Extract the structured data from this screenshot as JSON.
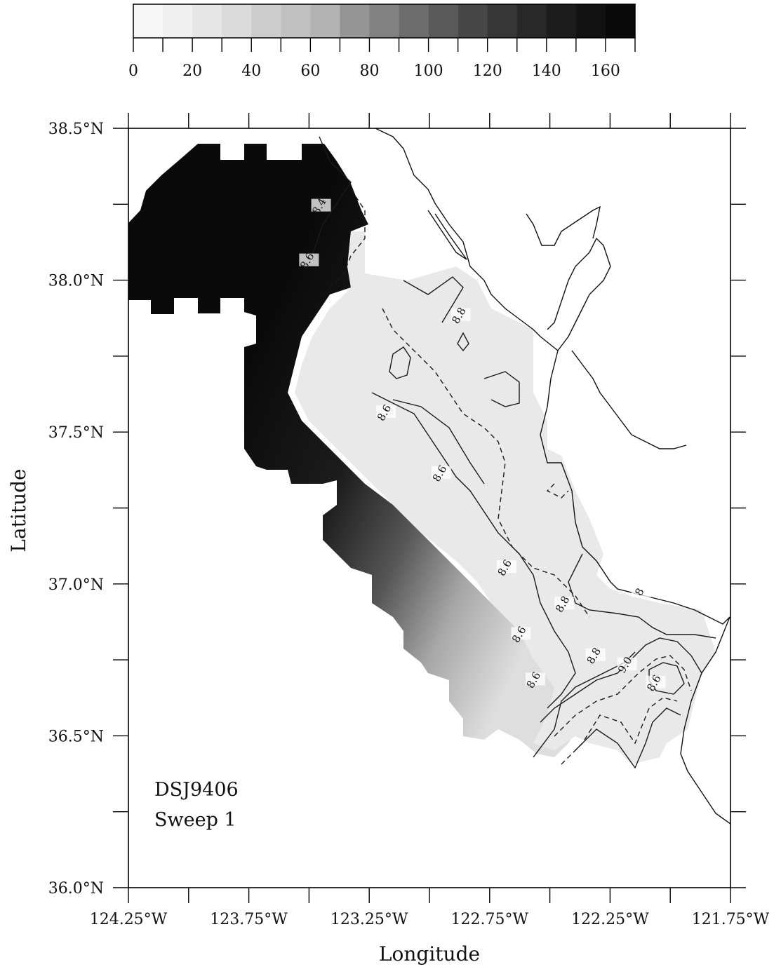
{
  "colorbar": {
    "tick_labels": [
      "0",
      "20",
      "40",
      "60",
      "80",
      "100",
      "120",
      "140",
      "160"
    ],
    "range": [
      0,
      170
    ],
    "bands": [
      {
        "from": 0,
        "to": 10,
        "color": "#f7f7f7"
      },
      {
        "from": 10,
        "to": 20,
        "color": "#f0f0f0"
      },
      {
        "from": 20,
        "to": 30,
        "color": "#e6e6e6"
      },
      {
        "from": 30,
        "to": 40,
        "color": "#dadada"
      },
      {
        "from": 40,
        "to": 50,
        "color": "#cdcdcd"
      },
      {
        "from": 50,
        "to": 60,
        "color": "#c0c0c0"
      },
      {
        "from": 60,
        "to": 70,
        "color": "#b3b3b3"
      },
      {
        "from": 70,
        "to": 80,
        "color": "#959595"
      },
      {
        "from": 80,
        "to": 90,
        "color": "#818181"
      },
      {
        "from": 90,
        "to": 100,
        "color": "#6d6d6d"
      },
      {
        "from": 100,
        "to": 110,
        "color": "#5a5a5a"
      },
      {
        "from": 110,
        "to": 120,
        "color": "#474747"
      },
      {
        "from": 120,
        "to": 130,
        "color": "#363636"
      },
      {
        "from": 130,
        "to": 140,
        "color": "#282828"
      },
      {
        "from": 140,
        "to": 150,
        "color": "#1c1c1c"
      },
      {
        "from": 150,
        "to": 160,
        "color": "#121212"
      },
      {
        "from": 160,
        "to": 170,
        "color": "#0a0a0a"
      }
    ]
  },
  "axes": {
    "x_title": "Longitude",
    "y_title": "Latitude",
    "x_tick_labels": [
      {
        "value": -124.25,
        "label": "124.25°W"
      },
      {
        "value": -123.75,
        "label": "123.75°W"
      },
      {
        "value": -123.25,
        "label": "123.25°W"
      },
      {
        "value": -122.75,
        "label": "122.75°W"
      },
      {
        "value": -122.25,
        "label": "122.25°W"
      },
      {
        "value": -121.75,
        "label": "121.75°W"
      }
    ],
    "y_tick_labels": [
      {
        "value": 38.5,
        "label": "38.5°N"
      },
      {
        "value": 38.0,
        "label": "38.0°N"
      },
      {
        "value": 37.5,
        "label": "37.5°N"
      },
      {
        "value": 37.0,
        "label": "37.0°N"
      },
      {
        "value": 36.5,
        "label": "36.5°N"
      },
      {
        "value": 36.0,
        "label": "36.0°N"
      }
    ],
    "xlim": [
      -124.25,
      -121.75
    ],
    "ylim": [
      36.0,
      38.5
    ],
    "minor_x_ticks": [
      -124.0,
      -123.5,
      -123.0,
      -122.5,
      -122.0
    ],
    "minor_y_ticks": [
      38.25,
      37.75,
      37.25,
      36.75,
      36.25
    ]
  },
  "annotation": {
    "line1": "DSJ9406",
    "line2": "Sweep 1"
  },
  "contour_labels": [
    {
      "text": "8.4",
      "lon": -123.45,
      "lat": 38.24
    },
    {
      "text": "8.6",
      "lon": -123.5,
      "lat": 38.06
    },
    {
      "text": "8.8",
      "lon": -122.87,
      "lat": 37.88
    },
    {
      "text": "8.6",
      "lon": -123.18,
      "lat": 37.56
    },
    {
      "text": "8.6",
      "lon": -122.95,
      "lat": 37.36
    },
    {
      "text": "8.6",
      "lon": -122.68,
      "lat": 37.05
    },
    {
      "text": "8.8",
      "lon": -122.44,
      "lat": 36.93
    },
    {
      "text": "8",
      "lon": -122.12,
      "lat": 36.97
    },
    {
      "text": "8.6",
      "lon": -122.62,
      "lat": 36.83
    },
    {
      "text": "8.8",
      "lon": -122.31,
      "lat": 36.76
    },
    {
      "text": "9.0",
      "lon": -122.18,
      "lat": 36.73
    },
    {
      "text": "8.6",
      "lon": -122.06,
      "lat": 36.67
    },
    {
      "text": "8.6",
      "lon": -122.56,
      "lat": 36.68
    }
  ],
  "colors": {
    "frame": "#000000",
    "coastline": "#111111",
    "contour": "#1a1a1a",
    "background": "#ffffff"
  }
}
